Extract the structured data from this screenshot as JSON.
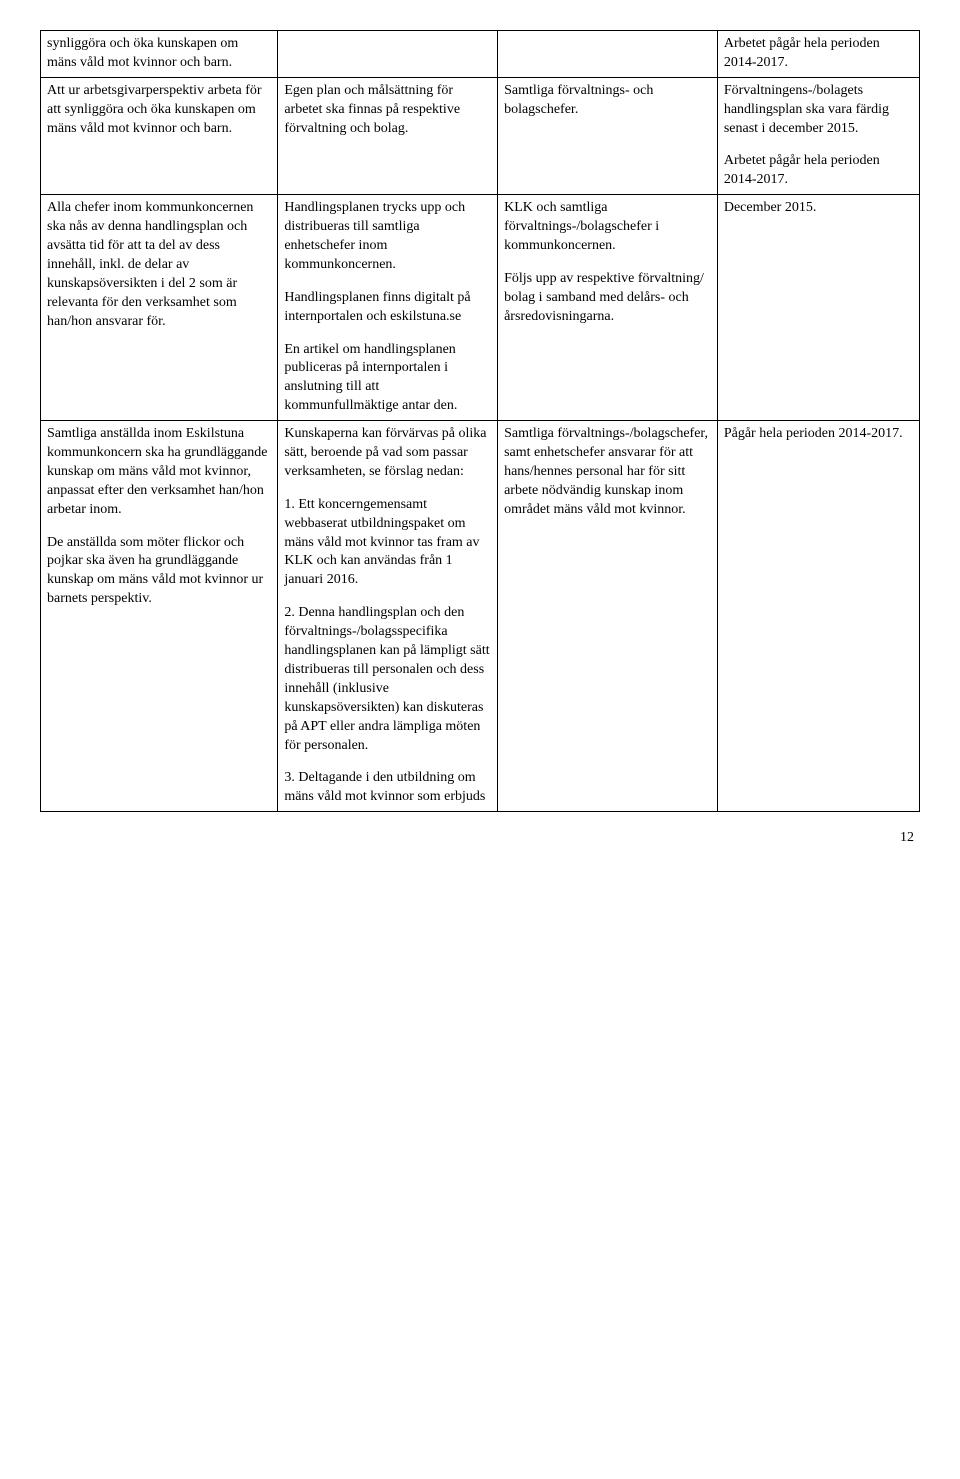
{
  "table": {
    "rows": [
      {
        "c1": [
          "synliggöra och öka kunskapen om mäns våld mot kvinnor och barn."
        ],
        "c2": [],
        "c3": [],
        "c4": [
          "Arbetet pågår hela perioden 2014-2017."
        ]
      },
      {
        "c1": [
          "Att ur arbetsgivarperspektiv arbeta för att synliggöra och öka kunskapen om mäns våld mot kvinnor och barn."
        ],
        "c2": [
          "Egen plan och målsättning för arbetet ska finnas på respektive förvaltning och bolag."
        ],
        "c3": [
          "Samtliga förvaltnings- och bolagschefer."
        ],
        "c4": [
          "Förvaltningens-/bolagets handlingsplan ska vara färdig senast i december 2015.",
          "Arbetet pågår hela perioden 2014-2017."
        ]
      },
      {
        "c1": [
          "Alla chefer inom kommunkoncernen ska nås av denna handlingsplan och avsätta tid för att ta del av dess innehåll, inkl. de delar av kunskapsöversikten i del 2 som är relevanta för den verksamhet som han/hon ansvarar för."
        ],
        "c2": [
          "Handlingsplanen trycks upp och distribueras till samtliga enhetschefer inom kommunkoncernen.",
          "Handlingsplanen finns digitalt på internportalen och eskilstuna.se",
          "En artikel om handlingsplanen publiceras på internportalen i anslutning till att kommunfullmäktige antar den."
        ],
        "c3": [
          "KLK och samtliga förvaltnings-/bolagschefer i kommunkoncernen.",
          "Följs upp av respektive förvaltning/ bolag i samband med delårs- och årsredovisningarna."
        ],
        "c4": [
          "December 2015."
        ]
      },
      {
        "c1": [
          "Samtliga anställda inom Eskilstuna kommunkoncern ska ha grundläggande kunskap om mäns våld mot kvinnor, anpassat efter den verksamhet han/hon arbetar inom.",
          "De anställda som möter flickor och pojkar ska även ha grundläggande kunskap om mäns våld mot kvinnor ur barnets perspektiv."
        ],
        "c2": [
          "Kunskaperna kan förvärvas på olika sätt, beroende på vad som passar verksamheten, se förslag nedan:",
          "1. Ett koncerngemensamt webbaserat utbildningspaket om mäns våld mot kvinnor tas fram av KLK och kan användas från 1 januari 2016.",
          "2. Denna handlingsplan och den förvaltnings-/bolagsspecifika handlingsplanen kan på lämpligt sätt distribueras till personalen och dess innehåll (inklusive kunskapsöversikten) kan diskuteras på APT eller andra lämpliga möten för personalen.",
          "3. Deltagande i den utbildning om mäns våld mot kvinnor som erbjuds"
        ],
        "c3": [
          "Samtliga förvaltnings-/bolagschefer, samt enhetschefer ansvarar för att hans/hennes personal har för sitt arbete nödvändig kunskap inom området mäns våld mot kvinnor."
        ],
        "c4": [
          "Pågår hela perioden 2014-2017."
        ]
      }
    ]
  },
  "pageNumber": "12"
}
